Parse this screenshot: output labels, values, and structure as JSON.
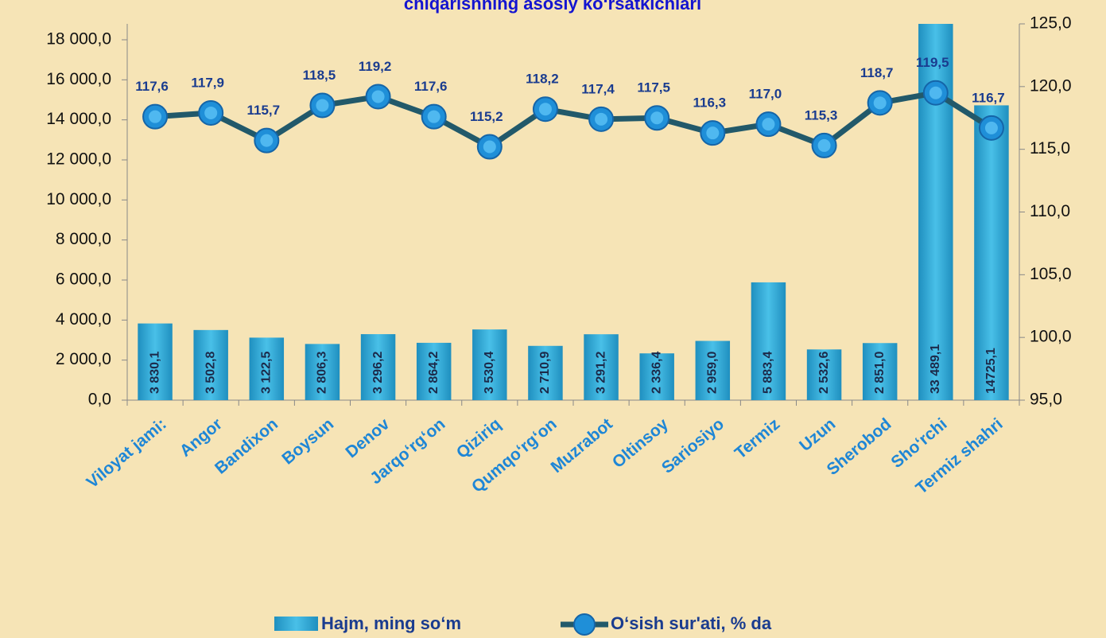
{
  "chart_data": {
    "type": "bar_line",
    "title": "chiqarishning asosiy ko‘rsatkichlari",
    "categories": [
      "Viloyat jami:",
      "Angor",
      "Bandixon",
      "Boysun",
      "Denov",
      "Jarqo‘rg‘on",
      "Qiziriq",
      "Qumqo‘rg‘on",
      "Muzrabot",
      "Oltinsoy",
      "Sariosiyo",
      "Termiz",
      "Uzun",
      "Sherobod",
      "Sho‘rchi",
      "Termiz shahri"
    ],
    "series": [
      {
        "name": "Hajm, ming so‘m",
        "type": "bar",
        "color": "#35b0dc",
        "values": [
          3830.1,
          3502.8,
          3122.5,
          2806.3,
          3296.2,
          2864.2,
          3530.4,
          2710.9,
          3291.2,
          2336.4,
          2959.0,
          5883.4,
          2532.6,
          2851.0,
          33489.1,
          14725.1
        ],
        "value_labels": [
          "3 830,1",
          "3 502,8",
          "3 122,5",
          "2 806,3",
          "3 296,2",
          "2 864,2",
          "3 530,4",
          "2 710,9",
          "3 291,2",
          "2 336,4",
          "2 959,0",
          "5 883,4",
          "2 532,6",
          "2 851,0",
          "33 489,1",
          "14725,1"
        ]
      },
      {
        "name": "O‘sish sur'ati, % da",
        "type": "line",
        "axis": "y2",
        "color": "#22596a",
        "marker_color": "#1f8fd8",
        "values": [
          117.6,
          117.9,
          115.7,
          118.5,
          119.2,
          117.6,
          115.2,
          118.2,
          117.4,
          117.5,
          116.3,
          117.0,
          115.3,
          118.7,
          119.5,
          116.7
        ],
        "value_labels": [
          "117,6",
          "117,9",
          "115,7",
          "118,5",
          "119,2",
          "117,6",
          "115,2",
          "118,2",
          "117,4",
          "117,5",
          "116,3",
          "117,0",
          "115,3",
          "118,7",
          "119,5",
          "116,7"
        ]
      }
    ],
    "ylim": [
      0,
      18000
    ],
    "yticks": [
      {
        "value": 0,
        "label": "0,0"
      },
      {
        "value": 2000,
        "label": "2 000,0"
      },
      {
        "value": 4000,
        "label": "4 000,0"
      },
      {
        "value": 6000,
        "label": "6 000,0"
      },
      {
        "value": 8000,
        "label": "8 000,0"
      },
      {
        "value": 10000,
        "label": "10 000,0"
      },
      {
        "value": 12000,
        "label": "12 000,0"
      },
      {
        "value": 14000,
        "label": "14 000,0"
      },
      {
        "value": 16000,
        "label": "16 000,0"
      },
      {
        "value": 18000,
        "label": "18 000,0"
      }
    ],
    "y2lim": [
      95,
      125
    ],
    "y2ticks": [
      {
        "value": 95,
        "label": "95,0"
      },
      {
        "value": 100,
        "label": "100,0"
      },
      {
        "value": 105,
        "label": "105,0"
      },
      {
        "value": 110,
        "label": "110,0"
      },
      {
        "value": 115,
        "label": "115,0"
      },
      {
        "value": 120,
        "label": "120,0"
      },
      {
        "value": 125,
        "label": "125,0"
      }
    ],
    "legend": "bottom"
  }
}
